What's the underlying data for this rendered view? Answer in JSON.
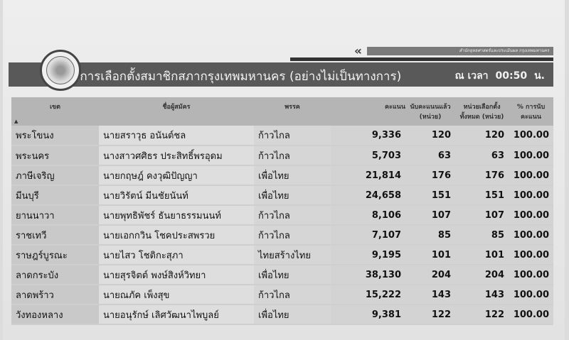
{
  "header": {
    "agency": "สำนักยุทธศาสตร์และประเมินผล กรุงเทพมหานคร",
    "title": "ผลการเลือกตั้งสมาชิกสภากรุงเทพมหานคร (อย่างไม่เป็นทางการ)",
    "time_label": "ณ เวลา",
    "time": "00:50",
    "time_unit": "น."
  },
  "columns": [
    "เขต",
    "ชื่อผู้สมัคร",
    "พรรค",
    "คะแนน",
    "นับคะแนนแล้ว (หน่วย)",
    "หน่วยเลือกตั้งทั้งหมด (หน่วย)",
    "% การนับคะแนน"
  ],
  "rows": [
    [
      "พระโขนง",
      "นายสราวุธ อนันต์ชล",
      "ก้าวไกล",
      "9,336",
      "120",
      "120",
      "100.00"
    ],
    [
      "พระนคร",
      "นางสาวศศิธร ประสิทธิ์พรอุดม",
      "ก้าวไกล",
      "5,703",
      "63",
      "63",
      "100.00"
    ],
    [
      "ภาษีเจริญ",
      "นายกฤษฎ์ คงวุฒิปัญญา",
      "เพื่อไทย",
      "21,814",
      "176",
      "176",
      "100.00"
    ],
    [
      "มีนบุรี",
      "นายวิรัตน์ มีนชัยนันท์",
      "เพื่อไทย",
      "24,658",
      "151",
      "151",
      "100.00"
    ],
    [
      "ยานนาวา",
      "นายพุทธิพัชร์ ธันยาธรรมนนท์",
      "ก้าวไกล",
      "8,106",
      "107",
      "107",
      "100.00"
    ],
    [
      "ราชเทวี",
      "นายเอกกวิน โชคประสพรวย",
      "ก้าวไกล",
      "7,107",
      "85",
      "85",
      "100.00"
    ],
    [
      "ราษฎร์บูรณะ",
      "นายไสว โชติกะสุภา",
      "ไทยสร้างไทย",
      "9,195",
      "101",
      "101",
      "100.00"
    ],
    [
      "ลาดกระบัง",
      "นายสุรจิตต์ พงษ์สิงห์วิทยา",
      "เพื่อไทย",
      "38,130",
      "204",
      "204",
      "100.00"
    ],
    [
      "ลาดพร้าว",
      "นายณภัค เพ็งสุข",
      "ก้าวไกล",
      "15,222",
      "143",
      "143",
      "100.00"
    ],
    [
      "วังทองหลาง",
      "นายอนุรักษ์ เลิศวัฒนาไพบูลย์",
      "เพื่อไทย",
      "9,381",
      "122",
      "122",
      "100.00"
    ]
  ]
}
